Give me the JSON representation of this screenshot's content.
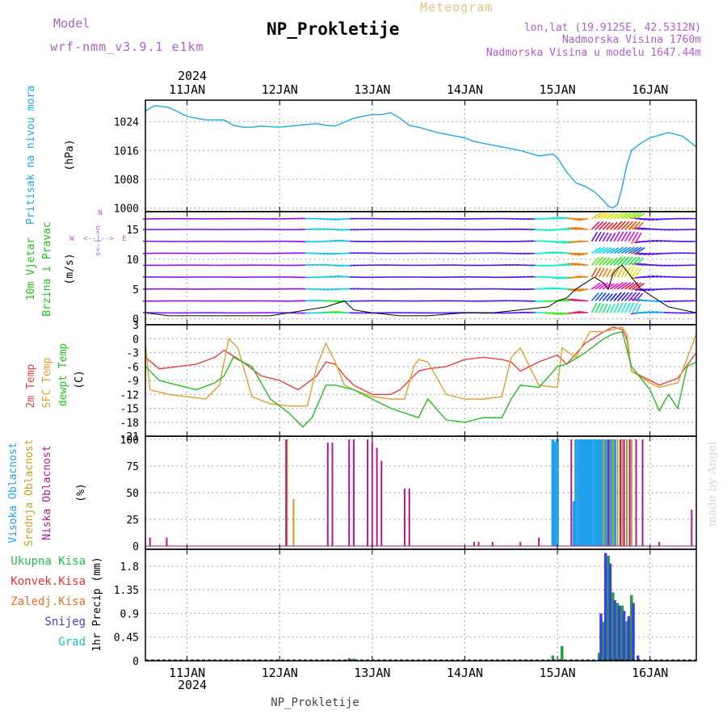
{
  "header": {
    "model_label": "Model",
    "model_name": "wrf-nmm_v3.9.1  e1km",
    "title": "NP_Prokletije",
    "subtitle": "Meteogram",
    "lonlat": "lon,lat (19.9125E, 42.5312N)",
    "altitude": "Nadmorska Visina 1760m",
    "model_altitude": "Nadmorska Visina u modelu 1647.44m",
    "year_top": "2024",
    "year_bottom": "2024",
    "footer_station": "NP_Prokletije",
    "watermark": "made by Angel"
  },
  "colors": {
    "pressure": "#1ea8e8",
    "t2m": "#e84040",
    "tsfc": "#e0a030",
    "dewpt": "#20c020",
    "high_cloud": "#20a0e8",
    "mid_cloud": "#c8a020",
    "low_cloud": "#b01890",
    "total_precip": "#20a040",
    "conv_precip": "#e83030",
    "frozen_precip": "#f07020",
    "snow": "#4040e0",
    "hail": "#20c0c0"
  },
  "chart_data": {
    "type": "meteogram",
    "x_axis": {
      "ticks": [
        "11JAN",
        "12JAN",
        "13JAN",
        "14JAN",
        "15JAN",
        "16JAN"
      ],
      "range_days": [
        10.55,
        16.5
      ]
    },
    "panels": [
      {
        "id": "pressure",
        "type": "line",
        "ylabel": [
          "Pritisak na nivou mora",
          "(hPa)"
        ],
        "yticks": [
          1000,
          1008,
          1016,
          1024
        ],
        "ylim": [
          999,
          1030
        ],
        "series": [
          {
            "name": "Pritisak na nivou mora",
            "x": [
              10.55,
              10.65,
              10.8,
              11.0,
              11.2,
              11.4,
              11.5,
              11.6,
              11.7,
              11.8,
              12.0,
              12.2,
              12.4,
              12.5,
              12.6,
              12.8,
              13.0,
              13.1,
              13.2,
              13.3,
              13.4,
              13.5,
              13.7,
              14.0,
              14.1,
              14.2,
              14.4,
              14.6,
              14.8,
              14.95,
              15.0,
              15.1,
              15.2,
              15.3,
              15.4,
              15.5,
              15.55,
              15.6,
              15.65,
              15.7,
              15.75,
              15.8,
              15.9,
              16.0,
              16.2,
              16.35,
              16.5
            ],
            "y": [
              1027,
              1028.5,
              1028,
              1025.5,
              1024.5,
              1024.5,
              1023,
              1022.5,
              1022.5,
              1022.8,
              1022.5,
              1023,
              1023.5,
              1023,
              1022.8,
              1025,
              1026,
              1026,
              1026.5,
              1025,
              1023,
              1022.5,
              1021,
              1019.5,
              1018.5,
              1018,
              1017,
              1016,
              1014.5,
              1015,
              1014,
              1010,
              1007,
              1006,
              1004.5,
              1002,
              1000.5,
              1000,
              1001,
              1006,
              1012,
              1016,
              1018,
              1019.5,
              1021,
              1020,
              1017
            ]
          }
        ]
      },
      {
        "id": "wind",
        "type": "vector",
        "ylabel": [
          "10m Vjetar",
          "Brzina i Pravac",
          "(m/s)"
        ],
        "direction_legend": [
          "N",
          "W",
          "E",
          "<--|-->",
          "s<-|->n"
        ],
        "yticks": [
          0,
          5,
          10,
          15
        ],
        "ylim": [
          -1,
          18
        ],
        "speed_series": {
          "x": [
            10.55,
            10.8,
            11.0,
            11.3,
            11.6,
            11.9,
            12.1,
            12.3,
            12.5,
            12.7,
            12.8,
            13.0,
            13.3,
            13.6,
            14.0,
            14.3,
            14.6,
            14.9,
            15.0,
            15.1,
            15.2,
            15.3,
            15.4,
            15.5,
            15.55,
            15.6,
            15.65,
            15.7,
            15.8,
            15.9,
            16.0,
            16.2,
            16.5
          ],
          "y": [
            1,
            0.5,
            0.5,
            0.5,
            0.5,
            0.5,
            1,
            1.5,
            2,
            3,
            1.5,
            1,
            0.5,
            0.5,
            1,
            1,
            1.5,
            2,
            3,
            3.5,
            5,
            6,
            7,
            6,
            5,
            7.5,
            8.5,
            9,
            7,
            5,
            4,
            2,
            1
          ]
        }
      },
      {
        "id": "temperature",
        "type": "line",
        "ylabel": [
          "2m Temp",
          "SFC Temp",
          "dewpt Temp",
          "(C)"
        ],
        "yticks": [
          3,
          0,
          -3,
          -6,
          -9,
          -12,
          -15,
          -18,
          -21
        ],
        "ylim": [
          -21,
          3
        ],
        "series": [
          {
            "name": "2m Temp",
            "x": [
              10.55,
              10.7,
              10.9,
              11.1,
              11.3,
              11.4,
              11.6,
              11.8,
              12.0,
              12.2,
              12.4,
              12.5,
              12.6,
              12.7,
              12.8,
              13.0,
              13.2,
              13.3,
              13.5,
              13.6,
              13.8,
              14.0,
              14.2,
              14.4,
              14.5,
              14.6,
              14.8,
              15.0,
              15.1,
              15.3,
              15.5,
              15.6,
              15.7,
              15.75,
              15.8,
              16.0,
              16.1,
              16.3,
              16.5
            ],
            "y": [
              -4,
              -6.5,
              -6,
              -5.5,
              -4,
              -2.5,
              -5,
              -8,
              -9,
              -11,
              -8,
              -5,
              -5.5,
              -8,
              -10,
              -12,
              -12,
              -11,
              -7,
              -6.5,
              -6,
              -4.5,
              -4,
              -4.5,
              -5,
              -7,
              -5,
              -3.5,
              -5.5,
              -1,
              1.5,
              2.5,
              2,
              0,
              -7,
              -9,
              -10,
              -8.5,
              -3
            ]
          },
          {
            "name": "SFC Temp",
            "x": [
              10.55,
              10.6,
              10.8,
              11.0,
              11.2,
              11.35,
              11.45,
              11.55,
              11.7,
              11.9,
              12.1,
              12.3,
              12.4,
              12.5,
              12.6,
              12.7,
              12.8,
              13.0,
              13.2,
              13.35,
              13.45,
              13.5,
              13.6,
              13.8,
              14.0,
              14.2,
              14.4,
              14.5,
              14.6,
              14.8,
              15.0,
              15.05,
              15.2,
              15.35,
              15.5,
              15.6,
              15.7,
              15.75,
              15.8,
              16.0,
              16.1,
              16.3,
              16.5
            ],
            "y": [
              -1,
              -11,
              -12,
              -12.5,
              -13,
              -10,
              0,
              -2,
              -12.5,
              -14,
              -14.5,
              -14.5,
              -6,
              -1,
              -5,
              -10,
              -11,
              -12.5,
              -13,
              -13,
              -6,
              -4.5,
              -5,
              -12,
              -13,
              -13,
              -12.5,
              -4,
              -2,
              -10,
              -10.5,
              -2,
              -4,
              1.5,
              1.5,
              2,
              2.5,
              1,
              -7,
              -9.5,
              -10.5,
              -9.5,
              1
            ]
          },
          {
            "name": "dewpt Temp",
            "x": [
              10.55,
              10.7,
              10.9,
              11.1,
              11.3,
              11.4,
              11.5,
              11.7,
              11.9,
              12.1,
              12.25,
              12.35,
              12.5,
              12.6,
              12.7,
              12.8,
              13.0,
              13.2,
              13.35,
              13.5,
              13.6,
              13.8,
              14.0,
              14.2,
              14.4,
              14.5,
              14.6,
              14.8,
              15.0,
              15.1,
              15.3,
              15.5,
              15.6,
              15.7,
              15.8,
              16.0,
              16.1,
              16.2,
              16.3,
              16.4,
              16.5
            ],
            "y": [
              -6,
              -9,
              -10,
              -11,
              -9.5,
              -8,
              -4,
              -6,
              -13,
              -16,
              -19,
              -17,
              -10,
              -10,
              -10.5,
              -11,
              -13,
              -15,
              -16,
              -17,
              -13,
              -17.5,
              -18,
              -17,
              -17,
              -13,
              -10,
              -10.5,
              -6,
              -5.5,
              -3,
              0,
              1,
              1.5,
              -6,
              -11,
              -15.5,
              -12,
              -15,
              -6,
              -5
            ]
          }
        ]
      },
      {
        "id": "cloud",
        "type": "bar",
        "ylabel": [
          "Visoka Oblacnost",
          "Srednja Oblacnost",
          "Niska Oblacnost",
          "(%)"
        ],
        "yticks": [
          0,
          25,
          50,
          75,
          100
        ],
        "ylim": [
          -3,
          103
        ],
        "series": [
          {
            "name": "Visoka Oblacnost",
            "x": [
              14.95,
              14.97,
              15.0,
              15.18,
              15.2,
              15.23,
              15.25,
              15.28,
              15.3,
              15.32,
              15.35,
              15.37,
              15.4,
              15.42,
              15.45,
              15.47,
              15.5,
              15.52,
              15.55,
              15.57,
              15.6,
              15.62
            ],
            "y": [
              100,
              98,
              100,
              42,
              100,
              100,
              100,
              100,
              100,
              100,
              100,
              100,
              100,
              100,
              100,
              100,
              100,
              100,
              100,
              100,
              100,
              100
            ]
          },
          {
            "name": "Srednja Oblacnost",
            "x": [
              12.08,
              12.15,
              15.5,
              15.55,
              15.6,
              15.65,
              15.7,
              15.75,
              15.8,
              15.85
            ],
            "y": [
              100,
              44,
              100,
              100,
              100,
              100,
              100,
              100,
              100,
              22
            ]
          },
          {
            "name": "Niska Oblacnost",
            "x": [
              10.6,
              10.78,
              12.07,
              12.52,
              12.57,
              12.75,
              12.8,
              12.95,
              13.0,
              13.05,
              13.1,
              13.35,
              13.4,
              14.1,
              14.15,
              14.3,
              14.6,
              14.8,
              15.15,
              15.55,
              15.68,
              15.72,
              15.78,
              15.85,
              15.92,
              16.1,
              16.45
            ],
            "y": [
              8,
              8,
              100,
              97,
              97,
              100,
              100,
              100,
              98,
              92,
              80,
              54,
              54,
              4,
              4,
              4,
              4,
              8,
              100,
              100,
              100,
              100,
              100,
              100,
              100,
              4,
              34
            ]
          }
        ]
      },
      {
        "id": "precip",
        "type": "bar",
        "ylabel": [
          "1hr Precip (mm)"
        ],
        "legend": [
          "Ukupna Kisa",
          "Konvek.Kisa",
          "Zaledj.Kisa",
          "Snijeg",
          "Grad"
        ],
        "yticks": [
          0,
          0.45,
          0.9,
          1.35,
          1.8
        ],
        "ylim": [
          0,
          2.12
        ],
        "series": [
          {
            "name": "Ukupna Kisa",
            "x": [
              12.75,
              12.8,
              14.95,
              15.05,
              15.45,
              15.5,
              15.55,
              15.6,
              15.65,
              15.7,
              15.75,
              15.8
            ],
            "y": [
              0.05,
              0.04,
              0.1,
              0.28,
              0.15,
              0.74,
              2.0,
              1.3,
              1.1,
              1.05,
              0.75,
              1.25
            ]
          },
          {
            "name": "Snijeg",
            "x": [
              15.47,
              15.52,
              15.57,
              15.62,
              15.67,
              15.72,
              15.77,
              15.82,
              15.87
            ],
            "y": [
              0.9,
              2.05,
              1.85,
              1.15,
              1.05,
              0.95,
              0.85,
              1.1,
              0.1
            ]
          }
        ]
      }
    ]
  }
}
